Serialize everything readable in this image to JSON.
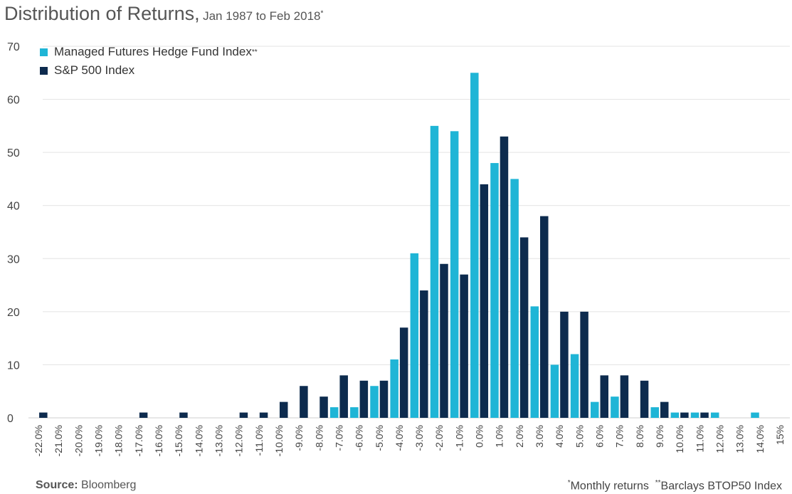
{
  "title": {
    "main": "Distribution of Returns,",
    "sub": "Jan 1987 to Feb 2018",
    "sub_sup": "*"
  },
  "legend": [
    {
      "label": "Managed Futures Hedge Fund Index",
      "sup": "**",
      "color": "#1fb5d6"
    },
    {
      "label": "S&P 500 Index",
      "sup": "",
      "color": "#0d2b4e"
    }
  ],
  "footer": {
    "source_label": "Source:",
    "source_value": "Bloomberg",
    "note1_mark": "*",
    "note1": "Monthly returns",
    "note2_mark": "**",
    "note2": "Barclays BTOP50 Index"
  },
  "chart_data": {
    "type": "bar",
    "categories": [
      "-22.0%",
      "-21.0%",
      "-20.0%",
      "-19.0%",
      "-18.0%",
      "-17.0%",
      "-16.0%",
      "-15.0%",
      "-14.0%",
      "-13.0%",
      "-12.0%",
      "-11.0%",
      "-10.0%",
      "-9.0%",
      "-8.0%",
      "-7.0%",
      "-6.0%",
      "-5.0%",
      "-4.0%",
      "-3.0%",
      "-2.0%",
      "-1.0%",
      "0.0%",
      "1.0%",
      "2.0%",
      "3.0%",
      "4.0%",
      "5.0%",
      "6.0%",
      "7.0%",
      "8.0%",
      "9.0%",
      "10.0%",
      "11.0%",
      "12.0%",
      "13.0%",
      "14.0%",
      "15%"
    ],
    "series": [
      {
        "name": "Managed Futures Hedge Fund Index",
        "values": [
          0,
          0,
          0,
          0,
          0,
          0,
          0,
          0,
          0,
          0,
          0,
          0,
          0,
          0,
          0,
          2,
          2,
          6,
          11,
          31,
          55,
          54,
          65,
          48,
          45,
          21,
          10,
          12,
          3,
          4,
          0,
          2,
          1,
          1,
          1,
          0,
          1,
          0
        ]
      },
      {
        "name": "S&P 500 Index",
        "values": [
          1,
          0,
          0,
          0,
          0,
          1,
          0,
          1,
          0,
          0,
          1,
          1,
          3,
          6,
          4,
          8,
          7,
          7,
          17,
          24,
          29,
          27,
          44,
          53,
          34,
          38,
          20,
          20,
          8,
          8,
          7,
          3,
          1,
          1,
          0,
          0,
          0,
          0
        ]
      }
    ],
    "ylim": [
      0,
      70
    ],
    "yticks": [
      0,
      10,
      20,
      30,
      40,
      50,
      60,
      70
    ],
    "grid": true,
    "legend_position": "top-left"
  }
}
